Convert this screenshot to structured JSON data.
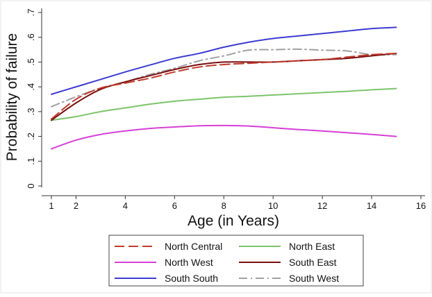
{
  "chart_data": {
    "type": "line",
    "title": "",
    "xlabel": "Age (in Years)",
    "ylabel": "Probability of failure",
    "xlim": [
      1,
      16
    ],
    "ylim": [
      0,
      0.7
    ],
    "x_ticks": [
      {
        "value": 1,
        "label": "1"
      },
      {
        "value": 2,
        "label": "2"
      },
      {
        "value": 4,
        "label": "4"
      },
      {
        "value": 6,
        "label": "6"
      },
      {
        "value": 8,
        "label": "8"
      },
      {
        "value": 10,
        "label": "10"
      },
      {
        "value": 12,
        "label": "12"
      },
      {
        "value": 14,
        "label": "14"
      },
      {
        "value": 16,
        "label": "16"
      }
    ],
    "y_ticks": [
      {
        "value": 0,
        "label": "0"
      },
      {
        "value": 0.1,
        "label": ".1"
      },
      {
        "value": 0.2,
        "label": ".2"
      },
      {
        "value": 0.3,
        "label": ".3"
      },
      {
        "value": 0.4,
        "label": ".4"
      },
      {
        "value": 0.5,
        "label": ".5"
      },
      {
        "value": 0.6,
        "label": ".6"
      },
      {
        "value": 0.7,
        "label": ".7"
      }
    ],
    "grid": false,
    "legend_position": "bottom",
    "series": [
      {
        "name": "North Central",
        "color": "#c0392b",
        "dash": "long-dash",
        "x": [
          1,
          2,
          3,
          4,
          5,
          6,
          7,
          8,
          9,
          10,
          11,
          12,
          13,
          14,
          15
        ],
        "y": [
          0.27,
          0.35,
          0.395,
          0.415,
          0.435,
          0.46,
          0.48,
          0.49,
          0.495,
          0.5,
          0.505,
          0.51,
          0.52,
          0.53,
          0.535
        ]
      },
      {
        "name": "North East",
        "color": "#7bc46b",
        "dash": "solid",
        "x": [
          1,
          2,
          3,
          4,
          5,
          6,
          7,
          8,
          9,
          10,
          11,
          12,
          13,
          14,
          15
        ],
        "y": [
          0.265,
          0.28,
          0.3,
          0.315,
          0.33,
          0.342,
          0.35,
          0.358,
          0.362,
          0.367,
          0.372,
          0.377,
          0.382,
          0.388,
          0.393
        ]
      },
      {
        "name": "North West",
        "color": "#d63fd6",
        "dash": "solid",
        "x": [
          1,
          2,
          3,
          4,
          5,
          6,
          7,
          8,
          9,
          10,
          11,
          12,
          13,
          14,
          15
        ],
        "y": [
          0.15,
          0.185,
          0.208,
          0.222,
          0.232,
          0.238,
          0.243,
          0.244,
          0.242,
          0.235,
          0.228,
          0.222,
          0.215,
          0.208,
          0.2
        ]
      },
      {
        "name": "South East",
        "color": "#7a0d0d",
        "dash": "solid",
        "x": [
          1,
          2,
          3,
          4,
          5,
          6,
          7,
          8,
          9,
          10,
          11,
          12,
          13,
          14,
          15
        ],
        "y": [
          0.265,
          0.335,
          0.39,
          0.42,
          0.445,
          0.47,
          0.49,
          0.5,
          0.5,
          0.5,
          0.505,
          0.51,
          0.515,
          0.525,
          0.535
        ]
      },
      {
        "name": "South South",
        "color": "#3b3bd0",
        "dash": "solid",
        "x": [
          1,
          2,
          3,
          4,
          5,
          6,
          7,
          8,
          9,
          10,
          11,
          12,
          13,
          14,
          15
        ],
        "y": [
          0.37,
          0.4,
          0.43,
          0.46,
          0.488,
          0.515,
          0.535,
          0.56,
          0.58,
          0.595,
          0.605,
          0.615,
          0.625,
          0.635,
          0.64
        ]
      },
      {
        "name": "South West",
        "color": "#a0a0a0",
        "dash": "dash-dot",
        "x": [
          1,
          2,
          3,
          4,
          5,
          6,
          7,
          8,
          9,
          10,
          11,
          12,
          13,
          14,
          15
        ],
        "y": [
          0.32,
          0.36,
          0.395,
          0.42,
          0.45,
          0.475,
          0.505,
          0.525,
          0.548,
          0.55,
          0.552,
          0.548,
          0.545,
          0.53,
          0.53
        ]
      }
    ]
  }
}
